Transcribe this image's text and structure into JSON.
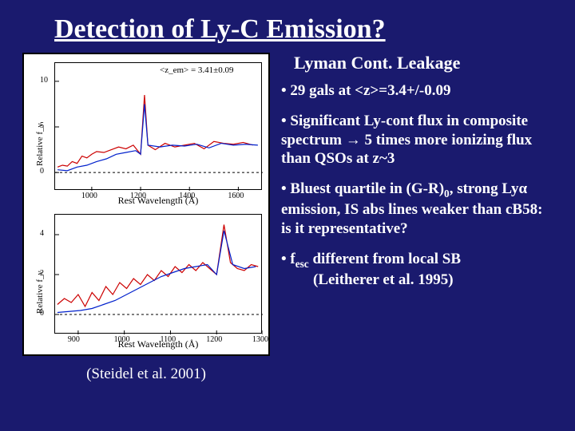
{
  "title": "Detection of Ly-C Emission?",
  "subtitle": "Lyman Cont. Leakage",
  "bullets": {
    "b1": "• 29 gals at <z>=3.4+/-0.09",
    "b2": "• Significant Ly-cont flux in composite spectrum → 5 times more ionizing flux than QSOs at z~3",
    "b3_a": "• Bluest quartile in (G-R)",
    "b3_sub": "0",
    "b3_b": ", strong Lyα emission, IS abs lines weaker than cB58: is it representative?",
    "b4_a": "• f",
    "b4_sub": "esc",
    "b4_b": " different from local SB",
    "b4_c": "(Leitherer et al. 1995)"
  },
  "citation_left": "(Steidel et al. 2001)",
  "chart": {
    "annotation_top": "<z_em> = 3.41±0.09",
    "ylabel": "Relative f_ν",
    "xlabel": "Rest Wavelength (Å)",
    "top": {
      "xlim": [
        850,
        1700
      ],
      "ylim": [
        -2,
        12
      ],
      "xticks": [
        1000,
        1200,
        1400,
        1600
      ],
      "yticks": [
        0,
        5,
        10
      ],
      "dash_y": 0,
      "red_line_color": "#cc0000",
      "blue_line_color": "#0020cc",
      "red": [
        [
          860,
          0.6
        ],
        [
          880,
          0.8
        ],
        [
          900,
          0.7
        ],
        [
          920,
          1.2
        ],
        [
          940,
          1.0
        ],
        [
          960,
          1.8
        ],
        [
          980,
          1.6
        ],
        [
          1000,
          2.0
        ],
        [
          1020,
          2.3
        ],
        [
          1050,
          2.2
        ],
        [
          1080,
          2.5
        ],
        [
          1110,
          2.8
        ],
        [
          1140,
          2.6
        ],
        [
          1170,
          3.0
        ],
        [
          1200,
          2.0
        ],
        [
          1216,
          8.5
        ],
        [
          1230,
          3.0
        ],
        [
          1260,
          2.5
        ],
        [
          1300,
          3.2
        ],
        [
          1340,
          2.8
        ],
        [
          1380,
          3.0
        ],
        [
          1420,
          3.2
        ],
        [
          1460,
          2.6
        ],
        [
          1500,
          3.4
        ],
        [
          1540,
          3.2
        ],
        [
          1580,
          3.1
        ],
        [
          1620,
          3.3
        ],
        [
          1660,
          3.0
        ]
      ],
      "blue": [
        [
          860,
          0.3
        ],
        [
          900,
          0.2
        ],
        [
          940,
          0.6
        ],
        [
          980,
          0.8
        ],
        [
          1020,
          1.2
        ],
        [
          1060,
          1.5
        ],
        [
          1100,
          2.0
        ],
        [
          1140,
          2.2
        ],
        [
          1180,
          2.4
        ],
        [
          1200,
          2.0
        ],
        [
          1216,
          7.5
        ],
        [
          1230,
          3.0
        ],
        [
          1280,
          2.8
        ],
        [
          1330,
          3.0
        ],
        [
          1380,
          2.9
        ],
        [
          1430,
          3.1
        ],
        [
          1480,
          2.7
        ],
        [
          1530,
          3.2
        ],
        [
          1580,
          3.0
        ],
        [
          1630,
          3.1
        ],
        [
          1680,
          3.0
        ]
      ]
    },
    "bot": {
      "xlim": [
        850,
        1300
      ],
      "ylim": [
        -1,
        5
      ],
      "xticks": [
        900,
        1000,
        1100,
        1200,
        1300
      ],
      "yticks": [
        0,
        2,
        4
      ],
      "dash_y": 0,
      "red_line_color": "#cc0000",
      "blue_line_color": "#0020cc",
      "red": [
        [
          855,
          0.5
        ],
        [
          870,
          0.8
        ],
        [
          885,
          0.6
        ],
        [
          900,
          1.0
        ],
        [
          915,
          0.4
        ],
        [
          930,
          1.1
        ],
        [
          945,
          0.7
        ],
        [
          960,
          1.4
        ],
        [
          975,
          1.0
        ],
        [
          990,
          1.6
        ],
        [
          1005,
          1.3
        ],
        [
          1020,
          1.8
        ],
        [
          1035,
          1.5
        ],
        [
          1050,
          2.0
        ],
        [
          1065,
          1.7
        ],
        [
          1080,
          2.2
        ],
        [
          1095,
          1.9
        ],
        [
          1110,
          2.4
        ],
        [
          1125,
          2.1
        ],
        [
          1140,
          2.5
        ],
        [
          1155,
          2.2
        ],
        [
          1170,
          2.6
        ],
        [
          1185,
          2.3
        ],
        [
          1200,
          2.0
        ],
        [
          1216,
          4.5
        ],
        [
          1230,
          2.6
        ],
        [
          1245,
          2.3
        ],
        [
          1260,
          2.2
        ],
        [
          1275,
          2.5
        ],
        [
          1290,
          2.4
        ]
      ],
      "blue": [
        [
          855,
          0.1
        ],
        [
          880,
          0.15
        ],
        [
          905,
          0.2
        ],
        [
          930,
          0.3
        ],
        [
          955,
          0.5
        ],
        [
          980,
          0.7
        ],
        [
          1005,
          1.0
        ],
        [
          1030,
          1.3
        ],
        [
          1055,
          1.6
        ],
        [
          1080,
          1.9
        ],
        [
          1105,
          2.1
        ],
        [
          1130,
          2.3
        ],
        [
          1155,
          2.4
        ],
        [
          1180,
          2.5
        ],
        [
          1200,
          2.0
        ],
        [
          1216,
          4.2
        ],
        [
          1235,
          2.5
        ],
        [
          1260,
          2.3
        ],
        [
          1285,
          2.4
        ]
      ]
    }
  },
  "colors": {
    "bg": "#1a1a6e",
    "text": "#ffffff"
  }
}
